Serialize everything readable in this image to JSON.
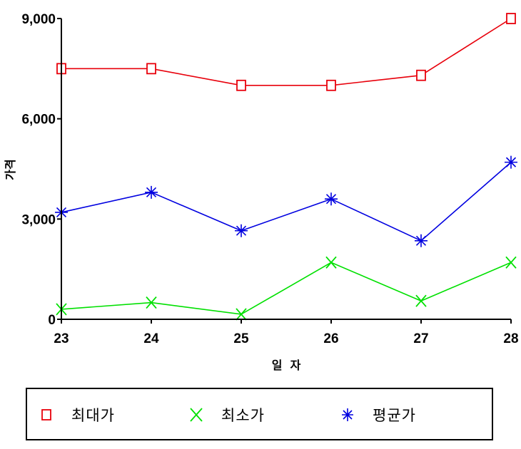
{
  "chart_data": {
    "type": "line",
    "categories": [
      "23",
      "24",
      "25",
      "26",
      "27",
      "28"
    ],
    "xlabel": "일  자",
    "ylabel": "가격",
    "ylim": [
      0,
      9000
    ],
    "yticks": [
      "0",
      "3,000",
      "6,000",
      "9,000"
    ],
    "yticks_values": [
      0,
      3000,
      6000,
      9000
    ],
    "legend_position": "bottom",
    "series": [
      {
        "name": "최대가",
        "marker": "square",
        "color": "#e8000b",
        "values": [
          7500,
          7500,
          7000,
          7000,
          7300,
          9000
        ]
      },
      {
        "name": "최소가",
        "marker": "x",
        "color": "#00e000",
        "values": [
          300,
          500,
          150,
          1700,
          550,
          1700
        ]
      },
      {
        "name": "평균가",
        "marker": "asterisk",
        "color": "#0000e0",
        "values": [
          3200,
          3800,
          2650,
          3600,
          2350,
          4700
        ]
      }
    ]
  }
}
